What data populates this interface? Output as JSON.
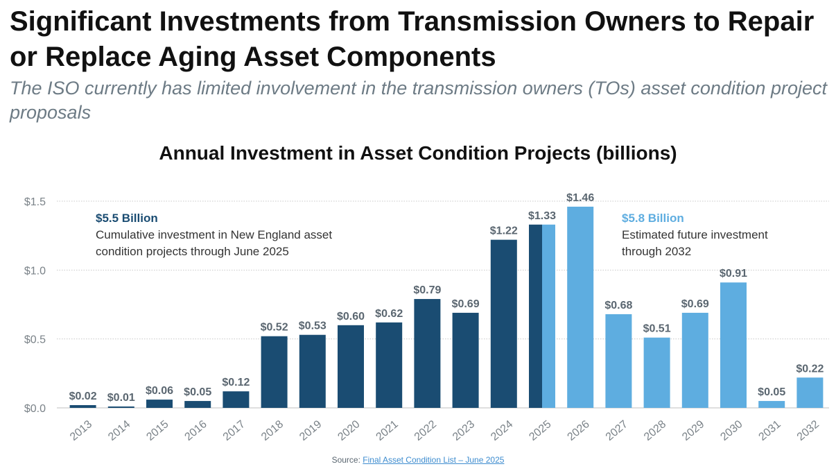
{
  "title": "Significant Investments from Transmission Owners to Repair or Replace Aging Asset Components",
  "subtitle": "The ISO currently has limited involvement in the transmission owners (TOs) asset condition project proposals",
  "colors": {
    "historical": "#1a4c72",
    "future": "#5eade0",
    "label": "#5a6670"
  },
  "annotations": {
    "left": {
      "head": "$5.5 Billion",
      "line1": "Cumulative investment in New England asset",
      "line2": "condition projects through June 2025"
    },
    "right": {
      "head": "$5.8 Billion",
      "line1": "Estimated future investment",
      "line2": "through 2032"
    }
  },
  "source": {
    "prefix": "Source: ",
    "link": "Final Asset Condition List – June 2025"
  },
  "chart_data": {
    "type": "bar",
    "title": "Annual Investment in Asset Condition Projects (billions)",
    "categories": [
      "2013",
      "2014",
      "2015",
      "2016",
      "2017",
      "2018",
      "2019",
      "2020",
      "2021",
      "2022",
      "2023",
      "2024",
      "2025",
      "2026",
      "2027",
      "2028",
      "2029",
      "2030",
      "2031",
      "2032"
    ],
    "values": [
      0.02,
      0.01,
      0.06,
      0.05,
      0.12,
      0.52,
      0.53,
      0.6,
      0.62,
      0.79,
      0.69,
      1.22,
      1.33,
      1.46,
      0.68,
      0.51,
      0.69,
      0.91,
      0.05,
      0.22
    ],
    "value_labels": [
      "$0.02",
      "$0.01",
      "$0.06",
      "$0.05",
      "$0.12",
      "$0.52",
      "$0.53",
      "$0.60",
      "$0.62",
      "$0.79",
      "$0.69",
      "$1.22",
      "$1.33",
      "$1.46",
      "$0.68",
      "$0.51",
      "$0.69",
      "$0.91",
      "$0.05",
      "$0.22"
    ],
    "series_type": [
      "historical",
      "historical",
      "historical",
      "historical",
      "historical",
      "historical",
      "historical",
      "historical",
      "historical",
      "historical",
      "historical",
      "historical",
      "split",
      "future",
      "future",
      "future",
      "future",
      "future",
      "future",
      "future"
    ],
    "y_ticks": [
      0,
      0.5,
      1.0,
      1.5
    ],
    "y_tick_labels": [
      "$0.0",
      "$0.5",
      "$1.0",
      "$1.5"
    ],
    "ylim": [
      0,
      1.5
    ],
    "grid": true
  }
}
